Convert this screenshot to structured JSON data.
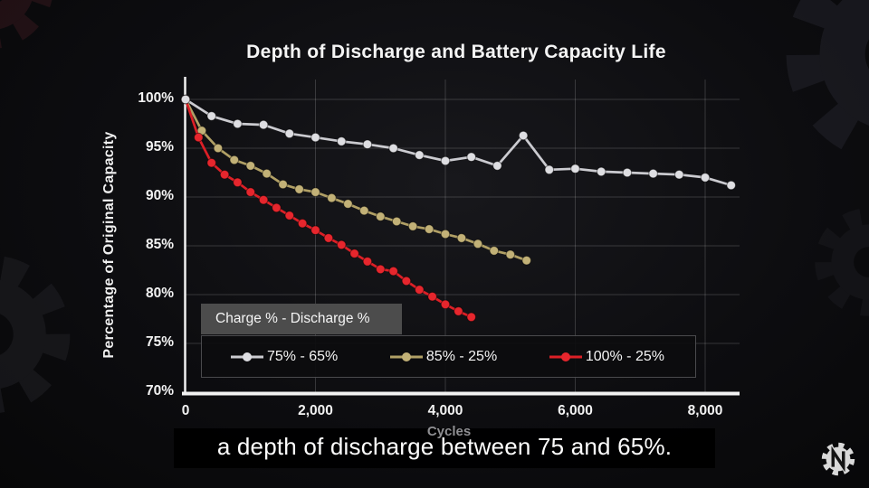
{
  "chart_data": {
    "type": "line",
    "title": "Depth of Discharge and Battery Capacity Life",
    "xlabel": "Cycles",
    "ylabel": "Percentage of Original Capacity",
    "xlim": [
      0,
      8550
    ],
    "ylim": [
      70,
      100
    ],
    "grid": true,
    "x_ticks": [
      0,
      2000,
      4000,
      6000,
      8000
    ],
    "x_tick_labels": [
      "0",
      "2,000",
      "4,000",
      "6,000",
      "8,000"
    ],
    "y_ticks": [
      70,
      75,
      80,
      85,
      90,
      95,
      100
    ],
    "y_tick_labels": [
      "70%",
      "75%",
      "80%",
      "85%",
      "90%",
      "95%",
      "100%"
    ],
    "legend_title": "Charge % - Discharge %",
    "legend_position": "inside-bottom-left",
    "series": [
      {
        "name": "75% - 65%",
        "color": "#cbcbd0",
        "marker_color": "#dedee2",
        "points": [
          [
            0,
            100
          ],
          [
            400,
            98.3
          ],
          [
            800,
            97.5
          ],
          [
            1200,
            97.4
          ],
          [
            1600,
            96.5
          ],
          [
            2000,
            96.1
          ],
          [
            2400,
            95.7
          ],
          [
            2800,
            95.4
          ],
          [
            3200,
            95.0
          ],
          [
            3600,
            94.3
          ],
          [
            4000,
            93.7
          ],
          [
            4400,
            94.1
          ],
          [
            4800,
            93.2
          ],
          [
            5200,
            96.3
          ],
          [
            5600,
            92.8
          ],
          [
            6000,
            92.9
          ],
          [
            6400,
            92.6
          ],
          [
            6800,
            92.5
          ],
          [
            7200,
            92.4
          ],
          [
            7600,
            92.3
          ],
          [
            8000,
            92.0
          ],
          [
            8400,
            91.2
          ]
        ]
      },
      {
        "name": "85% - 25%",
        "color": "#b1a065",
        "marker_color": "#c2b177",
        "points": [
          [
            0,
            100
          ],
          [
            250,
            96.8
          ],
          [
            500,
            95.0
          ],
          [
            750,
            93.8
          ],
          [
            1000,
            93.2
          ],
          [
            1250,
            92.4
          ],
          [
            1500,
            91.3
          ],
          [
            1750,
            90.8
          ],
          [
            2000,
            90.5
          ],
          [
            2250,
            89.9
          ],
          [
            2500,
            89.3
          ],
          [
            2750,
            88.6
          ],
          [
            3000,
            88.0
          ],
          [
            3250,
            87.5
          ],
          [
            3500,
            87.0
          ],
          [
            3750,
            86.7
          ],
          [
            4000,
            86.2
          ],
          [
            4250,
            85.8
          ],
          [
            4500,
            85.2
          ],
          [
            4750,
            84.5
          ],
          [
            5000,
            84.1
          ],
          [
            5250,
            83.5
          ]
        ]
      },
      {
        "name": "100% - 25%",
        "color": "#dc1f26",
        "marker_color": "#e6262d",
        "points": [
          [
            0,
            100
          ],
          [
            200,
            96.1
          ],
          [
            400,
            93.5
          ],
          [
            600,
            92.3
          ],
          [
            800,
            91.5
          ],
          [
            1000,
            90.5
          ],
          [
            1200,
            89.7
          ],
          [
            1400,
            88.9
          ],
          [
            1600,
            88.1
          ],
          [
            1800,
            87.3
          ],
          [
            2000,
            86.6
          ],
          [
            2200,
            85.8
          ],
          [
            2400,
            85.1
          ],
          [
            2600,
            84.2
          ],
          [
            2800,
            83.4
          ],
          [
            3000,
            82.6
          ],
          [
            3200,
            82.4
          ],
          [
            3400,
            81.4
          ],
          [
            3600,
            80.5
          ],
          [
            3800,
            79.8
          ],
          [
            4000,
            79.0
          ],
          [
            4200,
            78.3
          ],
          [
            4400,
            77.7
          ]
        ]
      }
    ]
  },
  "caption": {
    "text": "a depth of discharge between 75 and 65%."
  },
  "icons": {
    "logo": "gear-with-bolt",
    "background_decoration": "gear"
  },
  "colors": {
    "background": "#0b0b0d",
    "axis": "#f2f2f2",
    "grid": "rgba(255,255,255,0.17)",
    "legend_header_bg": "#4c4c4c",
    "legend_body_bg": "rgba(12,12,14,0.92)",
    "caption_bg": "#000000"
  }
}
